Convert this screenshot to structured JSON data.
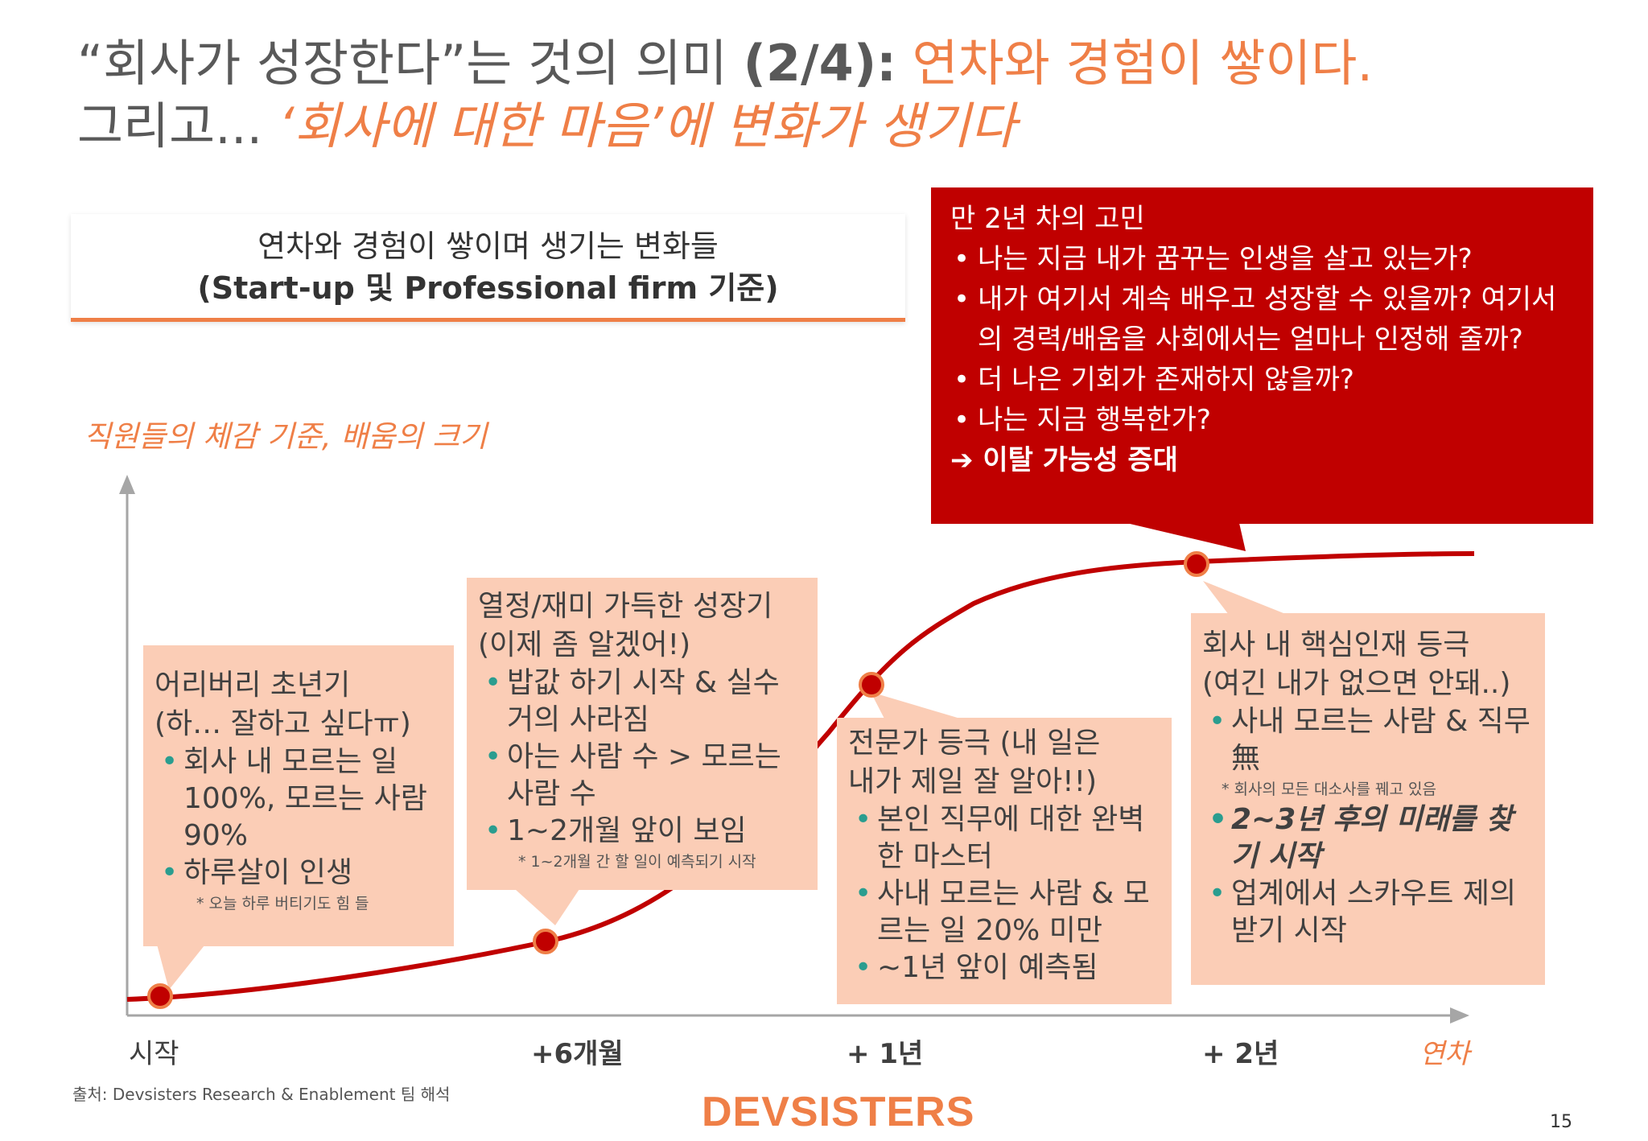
{
  "title": {
    "line1_prefix": "“회사가 성장한다”는 것의 의미 ",
    "line1_bold": "(2/4):",
    "line1_highlight": " 연차와 경험이 쌓이다.",
    "line2_prefix": "그리고...",
    "line2_italic": " ‘회사에 대한 마음’에 변화가 생기다"
  },
  "subtitle": {
    "line1": "연차와 경험이 쌓이며 생기는 변화들",
    "line2": "(Start-up 및 Professional firm 기준)"
  },
  "y_axis_label": "직원들의 체감 기준, 배움의 크기",
  "x_axis": {
    "ticks": [
      "시작",
      "+6개월",
      "+ 1년",
      "+ 2년"
    ],
    "unit_label": "연차"
  },
  "red_box": {
    "title": "만 2년 차의 고민",
    "bullets": [
      "나는 지금 내가 꿈꾸는 인생을 살고 있는가?",
      "내가 여기서 계속 배우고 성장할 수 있을까? 여기서의 경력/배움을 사회에서는 얼마나 인정해 줄까?",
      "더 나은 기회가 존재하지 않을까?",
      "나는 지금 행복한가?"
    ],
    "conclusion": "➔ 이탈 가능성 증대"
  },
  "stages": [
    {
      "title1": "어리버리 초년기",
      "title2": "(하… 잘하고 싶다ㅠ)",
      "bullets": [
        "회사 내 모르는 일 100%, 모르는 사람 90%",
        "하루살이 인생"
      ],
      "note": "* 오늘 하루 버티기도 힘 들"
    },
    {
      "title1": "열정/재미 가득한 성장기",
      "title2": "(이제 좀 알겠어!)",
      "bullets": [
        "밥값 하기 시작 & 실수 거의 사라짐",
        "아는 사람 수 > 모르는 사람 수",
        "1~2개월 앞이 보임"
      ],
      "note": "* 1~2개월 간 할 일이 예측되기 시작"
    },
    {
      "title1": "전문가 등극 (내 일은",
      "title2": "내가 제일 잘 알아!!)",
      "bullets": [
        "본인 직무에 대한 완벽한 마스터",
        "사내 모르는 사람 & 모르는 일 20% 미만",
        "~1년 앞이 예측됨"
      ],
      "note": ""
    },
    {
      "title1": "회사 내 핵심인재 등극",
      "title2": "(여긴 내가 없으면 안돼..)",
      "bullets": [
        "사내 모르는 사람 & 직무 無",
        "2~3년 후의 미래를 찾기 시작",
        "업계에서 스카우트 제의 받기 시작"
      ],
      "note": "* 회사의 모든 대소사를 꿰고 있음"
    }
  ],
  "chart_data": {
    "type": "line",
    "xlabel": "연차",
    "ylabel": "직원들의 체감 기준, 배움의 크기",
    "categories": [
      "시작",
      "+6개월",
      "+ 1년",
      "+ 2년"
    ],
    "markers": [
      "시작",
      "+6개월",
      "+ 1년",
      "+ 2년"
    ],
    "curve": "s-curve"
  },
  "source": "출처: Devsisters Research & Enablement 팀 해석",
  "logo": "DEVSISTERS",
  "page_number": "15",
  "colors": {
    "accent": "#ef7f47",
    "curve": "#c00000",
    "callout_bg": "#fbcdb6",
    "red_box": "#c00000",
    "bullet": "#2a9d8f"
  }
}
